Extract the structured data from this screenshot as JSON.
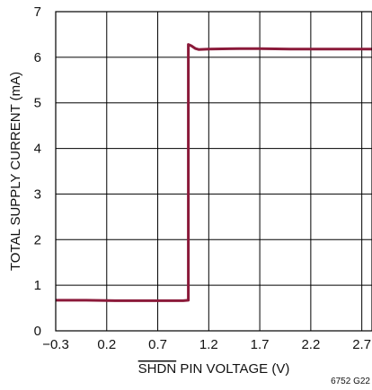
{
  "chart_data": {
    "type": "line",
    "title": "",
    "xlabel": "SHDN PIN VOLTAGE (V)",
    "xlabel_overline": "SHDN",
    "xlabel_rest": " PIN VOLTAGE (V)",
    "ylabel": "TOTAL SUPPLY CURRENT (mA)",
    "xlim": [
      -0.3,
      2.8
    ],
    "ylim": [
      0,
      7
    ],
    "xticks": [
      -0.3,
      0.2,
      0.7,
      1.2,
      1.7,
      2.2,
      2.7
    ],
    "xtick_labels": [
      "−0.3",
      "0.2",
      "0.7",
      "1.2",
      "1.7",
      "2.2",
      "2.7"
    ],
    "yticks": [
      0,
      1,
      2,
      3,
      4,
      5,
      6,
      7
    ],
    "ytick_labels": [
      "0",
      "1",
      "2",
      "3",
      "4",
      "5",
      "6",
      "7"
    ],
    "grid": true,
    "series": [
      {
        "color": "#8b1a3a",
        "x": [
          -0.3,
          0.0,
          0.3,
          0.6,
          0.8,
          0.95,
          1.0,
          1.0,
          1.03,
          1.07,
          1.1,
          1.2,
          1.5,
          1.7,
          2.0,
          2.3,
          2.6,
          2.8
        ],
        "y": [
          0.67,
          0.67,
          0.66,
          0.66,
          0.66,
          0.66,
          0.67,
          6.28,
          6.25,
          6.19,
          6.17,
          6.18,
          6.19,
          6.19,
          6.18,
          6.18,
          6.18,
          6.18
        ]
      }
    ],
    "figure_code": "6752 G22"
  }
}
